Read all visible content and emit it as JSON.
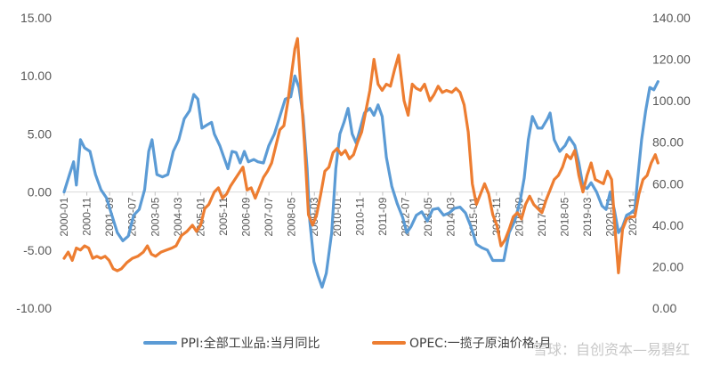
{
  "chart_data": {
    "type": "line",
    "title": "",
    "xlabel": "",
    "ylabel": "",
    "x_range": [
      2000.0,
      2021.25
    ],
    "ylim_left": [
      -10,
      15
    ],
    "ylim_right": [
      0,
      140
    ],
    "left_ticks": [
      "15.00",
      "10.00",
      "5.00",
      "0.00",
      "-5.00",
      "-10.00"
    ],
    "left_tick_values": [
      15,
      10,
      5,
      0,
      -5,
      -10
    ],
    "right_ticks": [
      "140.00",
      "120.00",
      "100.00",
      "80.00",
      "60.00",
      "40.00",
      "20.00",
      "0.00"
    ],
    "right_tick_values": [
      140,
      120,
      100,
      80,
      60,
      40,
      20,
      0
    ],
    "x_ticks": [
      "2000-01",
      "2000-11",
      "2001-09",
      "2002-07",
      "2003-05",
      "2004-03",
      "2005-01",
      "2005-11",
      "2006-09",
      "2007-07",
      "2008-05",
      "2009-03",
      "2010-01",
      "2010-11",
      "2011-09",
      "2012-07",
      "2013-05",
      "2014-03",
      "2015-01",
      "2015-11",
      "2016-09",
      "2017-07",
      "2018-05",
      "2019-03",
      "2020-01",
      "2020-11"
    ],
    "x_tick_values": [
      2000.0,
      2000.8333,
      2001.6667,
      2002.5,
      2003.3333,
      2004.1667,
      2005.0,
      2005.8333,
      2006.6667,
      2007.5,
      2008.3333,
      2009.1667,
      2010.0,
      2010.8333,
      2011.6667,
      2012.5,
      2013.3333,
      2014.1667,
      2015.0,
      2015.8333,
      2016.6667,
      2017.5,
      2018.3333,
      2019.1667,
      2020.0,
      2020.8333
    ],
    "series": [
      {
        "name": "PPI:全部工业品:当月同比",
        "axis": "left",
        "color": "#5b9bd5",
        "points": [
          [
            2000.0,
            0.0
          ],
          [
            2000.2,
            1.5
          ],
          [
            2000.35,
            2.6
          ],
          [
            2000.45,
            0.6
          ],
          [
            2000.6,
            4.5
          ],
          [
            2000.75,
            3.8
          ],
          [
            2000.95,
            3.5
          ],
          [
            2001.15,
            1.5
          ],
          [
            2001.35,
            0.2
          ],
          [
            2001.55,
            -0.5
          ],
          [
            2001.75,
            -2.0
          ],
          [
            2001.95,
            -3.5
          ],
          [
            2002.15,
            -4.2
          ],
          [
            2002.35,
            -3.8
          ],
          [
            2002.55,
            -2.0
          ],
          [
            2002.75,
            -1.5
          ],
          [
            2002.95,
            0.2
          ],
          [
            2003.1,
            3.5
          ],
          [
            2003.22,
            4.5
          ],
          [
            2003.4,
            1.5
          ],
          [
            2003.6,
            1.3
          ],
          [
            2003.8,
            1.5
          ],
          [
            2004.0,
            3.5
          ],
          [
            2004.2,
            4.5
          ],
          [
            2004.4,
            6.3
          ],
          [
            2004.6,
            7.0
          ],
          [
            2004.75,
            8.4
          ],
          [
            2004.9,
            8.0
          ],
          [
            2005.05,
            5.5
          ],
          [
            2005.25,
            5.8
          ],
          [
            2005.4,
            6.0
          ],
          [
            2005.5,
            5.0
          ],
          [
            2005.7,
            4.0
          ],
          [
            2005.85,
            3.0
          ],
          [
            2006.0,
            2.0
          ],
          [
            2006.15,
            3.5
          ],
          [
            2006.3,
            3.4
          ],
          [
            2006.45,
            2.5
          ],
          [
            2006.6,
            3.5
          ],
          [
            2006.75,
            2.6
          ],
          [
            2006.95,
            2.8
          ],
          [
            2007.1,
            2.6
          ],
          [
            2007.3,
            2.5
          ],
          [
            2007.5,
            4.0
          ],
          [
            2007.7,
            5.0
          ],
          [
            2007.9,
            6.5
          ],
          [
            2008.1,
            8.0
          ],
          [
            2008.3,
            8.2
          ],
          [
            2008.45,
            10.0
          ],
          [
            2008.6,
            9.0
          ],
          [
            2008.75,
            6.6
          ],
          [
            2008.9,
            2.0
          ],
          [
            2009.0,
            -2.5
          ],
          [
            2009.15,
            -6.0
          ],
          [
            2009.3,
            -7.2
          ],
          [
            2009.45,
            -8.2
          ],
          [
            2009.6,
            -7.0
          ],
          [
            2009.8,
            -3.5
          ],
          [
            2009.95,
            2.0
          ],
          [
            2010.1,
            5.0
          ],
          [
            2010.25,
            6.0
          ],
          [
            2010.4,
            7.2
          ],
          [
            2010.55,
            5.0
          ],
          [
            2010.7,
            4.2
          ],
          [
            2010.85,
            5.5
          ],
          [
            2011.0,
            6.8
          ],
          [
            2011.2,
            7.2
          ],
          [
            2011.35,
            6.6
          ],
          [
            2011.5,
            7.5
          ],
          [
            2011.65,
            6.5
          ],
          [
            2011.8,
            3.0
          ],
          [
            2012.0,
            0.5
          ],
          [
            2012.2,
            -1.0
          ],
          [
            2012.4,
            -2.2
          ],
          [
            2012.55,
            -3.5
          ],
          [
            2012.7,
            -3.0
          ],
          [
            2012.9,
            -2.0
          ],
          [
            2013.1,
            -1.7
          ],
          [
            2013.3,
            -2.5
          ],
          [
            2013.5,
            -1.5
          ],
          [
            2013.7,
            -1.4
          ],
          [
            2013.9,
            -2.0
          ],
          [
            2014.1,
            -1.8
          ],
          [
            2014.3,
            -1.4
          ],
          [
            2014.5,
            -1.3
          ],
          [
            2014.7,
            -1.8
          ],
          [
            2014.9,
            -3.0
          ],
          [
            2015.1,
            -4.5
          ],
          [
            2015.3,
            -4.8
          ],
          [
            2015.5,
            -5.0
          ],
          [
            2015.7,
            -5.9
          ],
          [
            2015.9,
            -5.9
          ],
          [
            2016.1,
            -5.9
          ],
          [
            2016.3,
            -3.5
          ],
          [
            2016.5,
            -2.5
          ],
          [
            2016.7,
            -0.8
          ],
          [
            2016.85,
            1.2
          ],
          [
            2017.0,
            4.5
          ],
          [
            2017.15,
            6.5
          ],
          [
            2017.35,
            5.5
          ],
          [
            2017.5,
            5.5
          ],
          [
            2017.7,
            6.3
          ],
          [
            2017.8,
            6.8
          ],
          [
            2017.95,
            4.5
          ],
          [
            2018.15,
            3.5
          ],
          [
            2018.35,
            4.0
          ],
          [
            2018.5,
            4.7
          ],
          [
            2018.7,
            4.0
          ],
          [
            2018.85,
            2.5
          ],
          [
            2019.0,
            0.5
          ],
          [
            2019.15,
            0.3
          ],
          [
            2019.3,
            0.8
          ],
          [
            2019.5,
            0.0
          ],
          [
            2019.7,
            -1.2
          ],
          [
            2019.85,
            -1.5
          ],
          [
            2020.0,
            0.0
          ],
          [
            2020.15,
            -1.5
          ],
          [
            2020.3,
            -3.5
          ],
          [
            2020.45,
            -3.0
          ],
          [
            2020.6,
            -2.0
          ],
          [
            2020.75,
            -1.8
          ],
          [
            2020.9,
            -1.5
          ],
          [
            2021.0,
            1.0
          ],
          [
            2021.15,
            4.5
          ],
          [
            2021.3,
            7.0
          ],
          [
            2021.45,
            9.0
          ],
          [
            2021.6,
            8.8
          ],
          [
            2021.75,
            9.5
          ]
        ]
      },
      {
        "name": "OPEC:一揽子原油价格:月",
        "axis": "right",
        "color": "#ed7d31",
        "points": [
          [
            2000.0,
            24
          ],
          [
            2000.15,
            27
          ],
          [
            2000.3,
            23
          ],
          [
            2000.45,
            29
          ],
          [
            2000.6,
            28
          ],
          [
            2000.75,
            30
          ],
          [
            2000.9,
            29
          ],
          [
            2001.05,
            24
          ],
          [
            2001.2,
            25
          ],
          [
            2001.35,
            24
          ],
          [
            2001.5,
            25
          ],
          [
            2001.65,
            23
          ],
          [
            2001.8,
            19
          ],
          [
            2001.95,
            18
          ],
          [
            2002.1,
            19
          ],
          [
            2002.3,
            22
          ],
          [
            2002.5,
            24
          ],
          [
            2002.7,
            25
          ],
          [
            2002.9,
            27
          ],
          [
            2003.05,
            30
          ],
          [
            2003.2,
            26
          ],
          [
            2003.35,
            25
          ],
          [
            2003.55,
            27
          ],
          [
            2003.75,
            28
          ],
          [
            2003.95,
            29
          ],
          [
            2004.1,
            30
          ],
          [
            2004.3,
            35
          ],
          [
            2004.5,
            37
          ],
          [
            2004.7,
            40
          ],
          [
            2004.85,
            37
          ],
          [
            2005.0,
            40
          ],
          [
            2005.15,
            48
          ],
          [
            2005.3,
            50
          ],
          [
            2005.5,
            56
          ],
          [
            2005.65,
            58
          ],
          [
            2005.8,
            53
          ],
          [
            2005.95,
            55
          ],
          [
            2006.1,
            59
          ],
          [
            2006.25,
            62
          ],
          [
            2006.4,
            65
          ],
          [
            2006.55,
            68
          ],
          [
            2006.7,
            57
          ],
          [
            2006.85,
            58
          ],
          [
            2007.0,
            53
          ],
          [
            2007.15,
            58
          ],
          [
            2007.3,
            63
          ],
          [
            2007.45,
            66
          ],
          [
            2007.6,
            70
          ],
          [
            2007.75,
            78
          ],
          [
            2007.9,
            86
          ],
          [
            2008.05,
            88
          ],
          [
            2008.2,
            100
          ],
          [
            2008.35,
            115
          ],
          [
            2008.45,
            125
          ],
          [
            2008.55,
            130
          ],
          [
            2008.65,
            110
          ],
          [
            2008.8,
            80
          ],
          [
            2008.95,
            45
          ],
          [
            2009.1,
            40
          ],
          [
            2009.25,
            45
          ],
          [
            2009.4,
            55
          ],
          [
            2009.55,
            66
          ],
          [
            2009.7,
            68
          ],
          [
            2009.85,
            75
          ],
          [
            2010.0,
            77
          ],
          [
            2010.15,
            74
          ],
          [
            2010.3,
            76
          ],
          [
            2010.45,
            72
          ],
          [
            2010.6,
            74
          ],
          [
            2010.75,
            80
          ],
          [
            2010.9,
            85
          ],
          [
            2011.05,
            95
          ],
          [
            2011.2,
            105
          ],
          [
            2011.35,
            120
          ],
          [
            2011.5,
            108
          ],
          [
            2011.65,
            105
          ],
          [
            2011.8,
            108
          ],
          [
            2011.95,
            107
          ],
          [
            2012.1,
            115
          ],
          [
            2012.25,
            122
          ],
          [
            2012.45,
            100
          ],
          [
            2012.6,
            93
          ],
          [
            2012.75,
            108
          ],
          [
            2012.9,
            106
          ],
          [
            2013.05,
            105
          ],
          [
            2013.2,
            108
          ],
          [
            2013.4,
            100
          ],
          [
            2013.55,
            103
          ],
          [
            2013.7,
            107
          ],
          [
            2013.85,
            104
          ],
          [
            2014.0,
            105
          ],
          [
            2014.2,
            104
          ],
          [
            2014.35,
            106
          ],
          [
            2014.5,
            104
          ],
          [
            2014.65,
            98
          ],
          [
            2014.8,
            85
          ],
          [
            2014.95,
            60
          ],
          [
            2015.1,
            50
          ],
          [
            2015.25,
            55
          ],
          [
            2015.4,
            60
          ],
          [
            2015.55,
            55
          ],
          [
            2015.7,
            45
          ],
          [
            2015.85,
            40
          ],
          [
            2016.0,
            30
          ],
          [
            2016.15,
            33
          ],
          [
            2016.3,
            38
          ],
          [
            2016.45,
            44
          ],
          [
            2016.6,
            46
          ],
          [
            2016.75,
            43
          ],
          [
            2016.9,
            50
          ],
          [
            2017.05,
            54
          ],
          [
            2017.2,
            50
          ],
          [
            2017.35,
            48
          ],
          [
            2017.5,
            46
          ],
          [
            2017.65,
            52
          ],
          [
            2017.8,
            57
          ],
          [
            2017.95,
            62
          ],
          [
            2018.1,
            64
          ],
          [
            2018.25,
            68
          ],
          [
            2018.4,
            74
          ],
          [
            2018.55,
            72
          ],
          [
            2018.7,
            76
          ],
          [
            2018.85,
            64
          ],
          [
            2019.0,
            56
          ],
          [
            2019.15,
            64
          ],
          [
            2019.3,
            70
          ],
          [
            2019.45,
            62
          ],
          [
            2019.6,
            61
          ],
          [
            2019.75,
            60
          ],
          [
            2019.9,
            66
          ],
          [
            2020.05,
            62
          ],
          [
            2020.2,
            34
          ],
          [
            2020.3,
            17
          ],
          [
            2020.45,
            38
          ],
          [
            2020.6,
            43
          ],
          [
            2020.75,
            44
          ],
          [
            2020.9,
            44
          ],
          [
            2021.05,
            55
          ],
          [
            2021.2,
            62
          ],
          [
            2021.35,
            64
          ],
          [
            2021.5,
            70
          ],
          [
            2021.65,
            74
          ],
          [
            2021.75,
            70
          ]
        ]
      }
    ],
    "legend": {
      "position": "bottom",
      "entries": [
        "PPI:全部工业品:当月同比",
        "OPEC:一揽子原油价格:月"
      ]
    },
    "watermark_text": "雪球：自创资本—易碧红"
  }
}
